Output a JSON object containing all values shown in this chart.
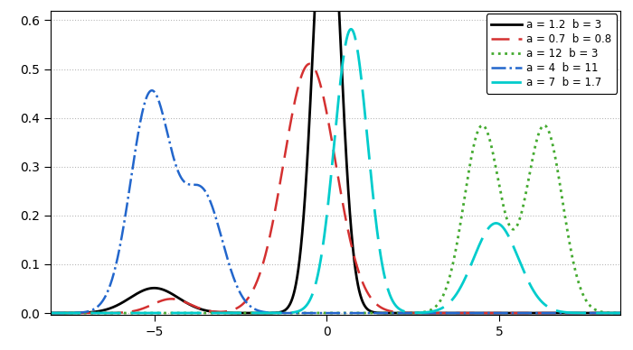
{
  "xmin": -8.0,
  "xmax": 8.5,
  "ymin": -0.004,
  "ymax": 0.62,
  "xticks": [
    -5,
    0,
    5
  ],
  "yticks": [
    0.0,
    0.1,
    0.2,
    0.3,
    0.4,
    0.5,
    0.6
  ],
  "background_color": "#ffffff",
  "grid_color": "#b8b8b8",
  "curves": [
    {
      "label": "a = 1.2  b = 3",
      "color": "#000000",
      "linestyle": "-",
      "linewidth": 2.0,
      "components": [
        {
          "mu": -5.0,
          "sigma": 0.7,
          "weight": 0.09
        },
        {
          "mu": 0.0,
          "sigma": 0.38,
          "weight": 0.91
        }
      ]
    },
    {
      "label": "a = 0.7  b = 0.8",
      "color": "#d43030",
      "linestyle": "--",
      "linewidth": 1.8,
      "dash_pattern": [
        8,
        4
      ],
      "components": [
        {
          "mu": -4.5,
          "sigma": 0.55,
          "weight": 0.04
        },
        {
          "mu": -0.5,
          "sigma": 0.75,
          "weight": 0.96
        }
      ]
    },
    {
      "label": "a = 12  b = 3",
      "color": "#44aa30",
      "linestyle": ":",
      "linewidth": 2.0,
      "components": [
        {
          "mu": 4.5,
          "sigma": 0.52,
          "weight": 0.5
        },
        {
          "mu": 6.3,
          "sigma": 0.52,
          "weight": 0.5
        }
      ]
    },
    {
      "label": "a = 4  b = 11",
      "color": "#2266cc",
      "linestyle": "-.",
      "linewidth": 1.8,
      "components": [
        {
          "mu": -5.1,
          "sigma": 0.58,
          "weight": 0.65
        },
        {
          "mu": -3.6,
          "sigma": 0.58,
          "weight": 0.35
        }
      ]
    },
    {
      "label": "a = 7  b = 1.7",
      "color": "#00cccc",
      "linestyle": "--",
      "linewidth": 2.0,
      "dash_pattern": [
        12,
        4
      ],
      "components": [
        {
          "mu": 0.7,
          "sigma": 0.48,
          "weight": 0.7
        },
        {
          "mu": 4.9,
          "sigma": 0.65,
          "weight": 0.3
        }
      ]
    }
  ]
}
